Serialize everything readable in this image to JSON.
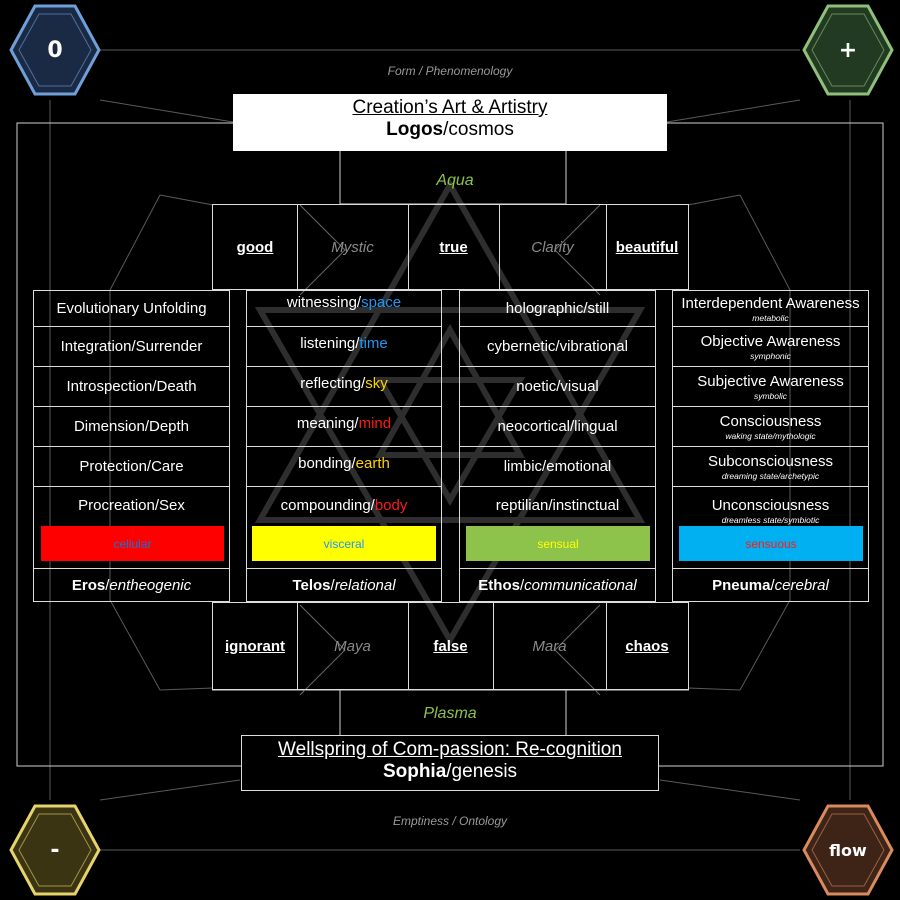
{
  "corners": {
    "top_left": {
      "label": "0",
      "color": "#6f9fd8"
    },
    "top_right": {
      "label": "+",
      "color": "#8fc07a"
    },
    "bottom_left": {
      "label": "-",
      "color": "#e6d46a"
    },
    "bottom_right": {
      "label": "flow",
      "color": "#d98a5e"
    }
  },
  "captions": {
    "top": "Form / Phenomenology",
    "bottom": "Emptiness / Ontology"
  },
  "top_box": {
    "line1": "Creation’s Art & Artistry",
    "line2_bold": "Logos",
    "line2_rest": "/cosmos"
  },
  "bottom_box": {
    "line1": "Wellspring of Com-passion: Re-cognition",
    "line2_bold": "Sophia",
    "line2_rest": "/genesis"
  },
  "aqua": "Aqua",
  "plasma": "Plasma",
  "top_headers": [
    "good",
    "Mystic",
    "true",
    "Clarity",
    "beautiful"
  ],
  "bottom_headers": [
    "ignorant",
    "Maya",
    "false",
    "Mara",
    "chaos"
  ],
  "columns": [
    {
      "rows": [
        {
          "text": "Evolutionary Unfolding"
        },
        {
          "text": "Integration/Surrender"
        },
        {
          "text": "Introspection/Death"
        },
        {
          "text": "Dimension/Depth"
        },
        {
          "text": "Protection/Care"
        },
        {
          "text": "Procreation/Sex"
        }
      ],
      "swatch": {
        "label": "cellular",
        "bg": "#ff0000",
        "fg": "#1e6fd0"
      },
      "footer": {
        "bold": "Eros",
        "italic": "entheogenic"
      }
    },
    {
      "rows": [
        {
          "a": "witnessing/",
          "b": "space",
          "color": "#2196f3"
        },
        {
          "a": "listening/",
          "b": "time",
          "color": "#2196f3"
        },
        {
          "a": "reflecting/",
          "b": "sky",
          "color": "#ffd400"
        },
        {
          "a": "meaning/",
          "b": "mind",
          "color": "#ff1a1a"
        },
        {
          "a": "bonding/",
          "b": "earth",
          "color": "#ffd400"
        },
        {
          "a": "compounding/",
          "b": "body",
          "color": "#ff1a1a"
        }
      ],
      "swatch": {
        "label": "visceral",
        "bg": "#ffff00",
        "fg": "#2196f3"
      },
      "footer": {
        "bold": "Telos",
        "italic": "relational"
      }
    },
    {
      "rows": [
        {
          "text": "holographic/still"
        },
        {
          "text": "cybernetic/vibrational"
        },
        {
          "text": "noetic/visual"
        },
        {
          "text": "neocortical/lingual"
        },
        {
          "text": "limbic/emotional"
        },
        {
          "text": "reptilian/instinctual"
        }
      ],
      "swatch": {
        "label": "sensual",
        "bg": "#8dc34a",
        "fg": "#ffff00"
      },
      "footer": {
        "bold": "Ethos",
        "italic": "communicational"
      }
    },
    {
      "rows": [
        {
          "text": "Interdependent Awareness",
          "sub": "metabolic"
        },
        {
          "text": "Objective Awareness",
          "sub": "symphonic"
        },
        {
          "text": "Subjective Awareness",
          "sub": "symbolic"
        },
        {
          "text": "Consciousness",
          "sub": "waking state/mythologic"
        },
        {
          "text": "Subconsciousness",
          "sub": "dreaming state/archetypic"
        },
        {
          "text": "Unconsciousness",
          "sub": "dreamless state/symbiotic"
        }
      ],
      "swatch": {
        "label": "sensuous",
        "bg": "#00b0f0",
        "fg": "#ff1a1a"
      },
      "footer": {
        "bold": "Pneuma",
        "italic": "cerebral"
      }
    }
  ]
}
